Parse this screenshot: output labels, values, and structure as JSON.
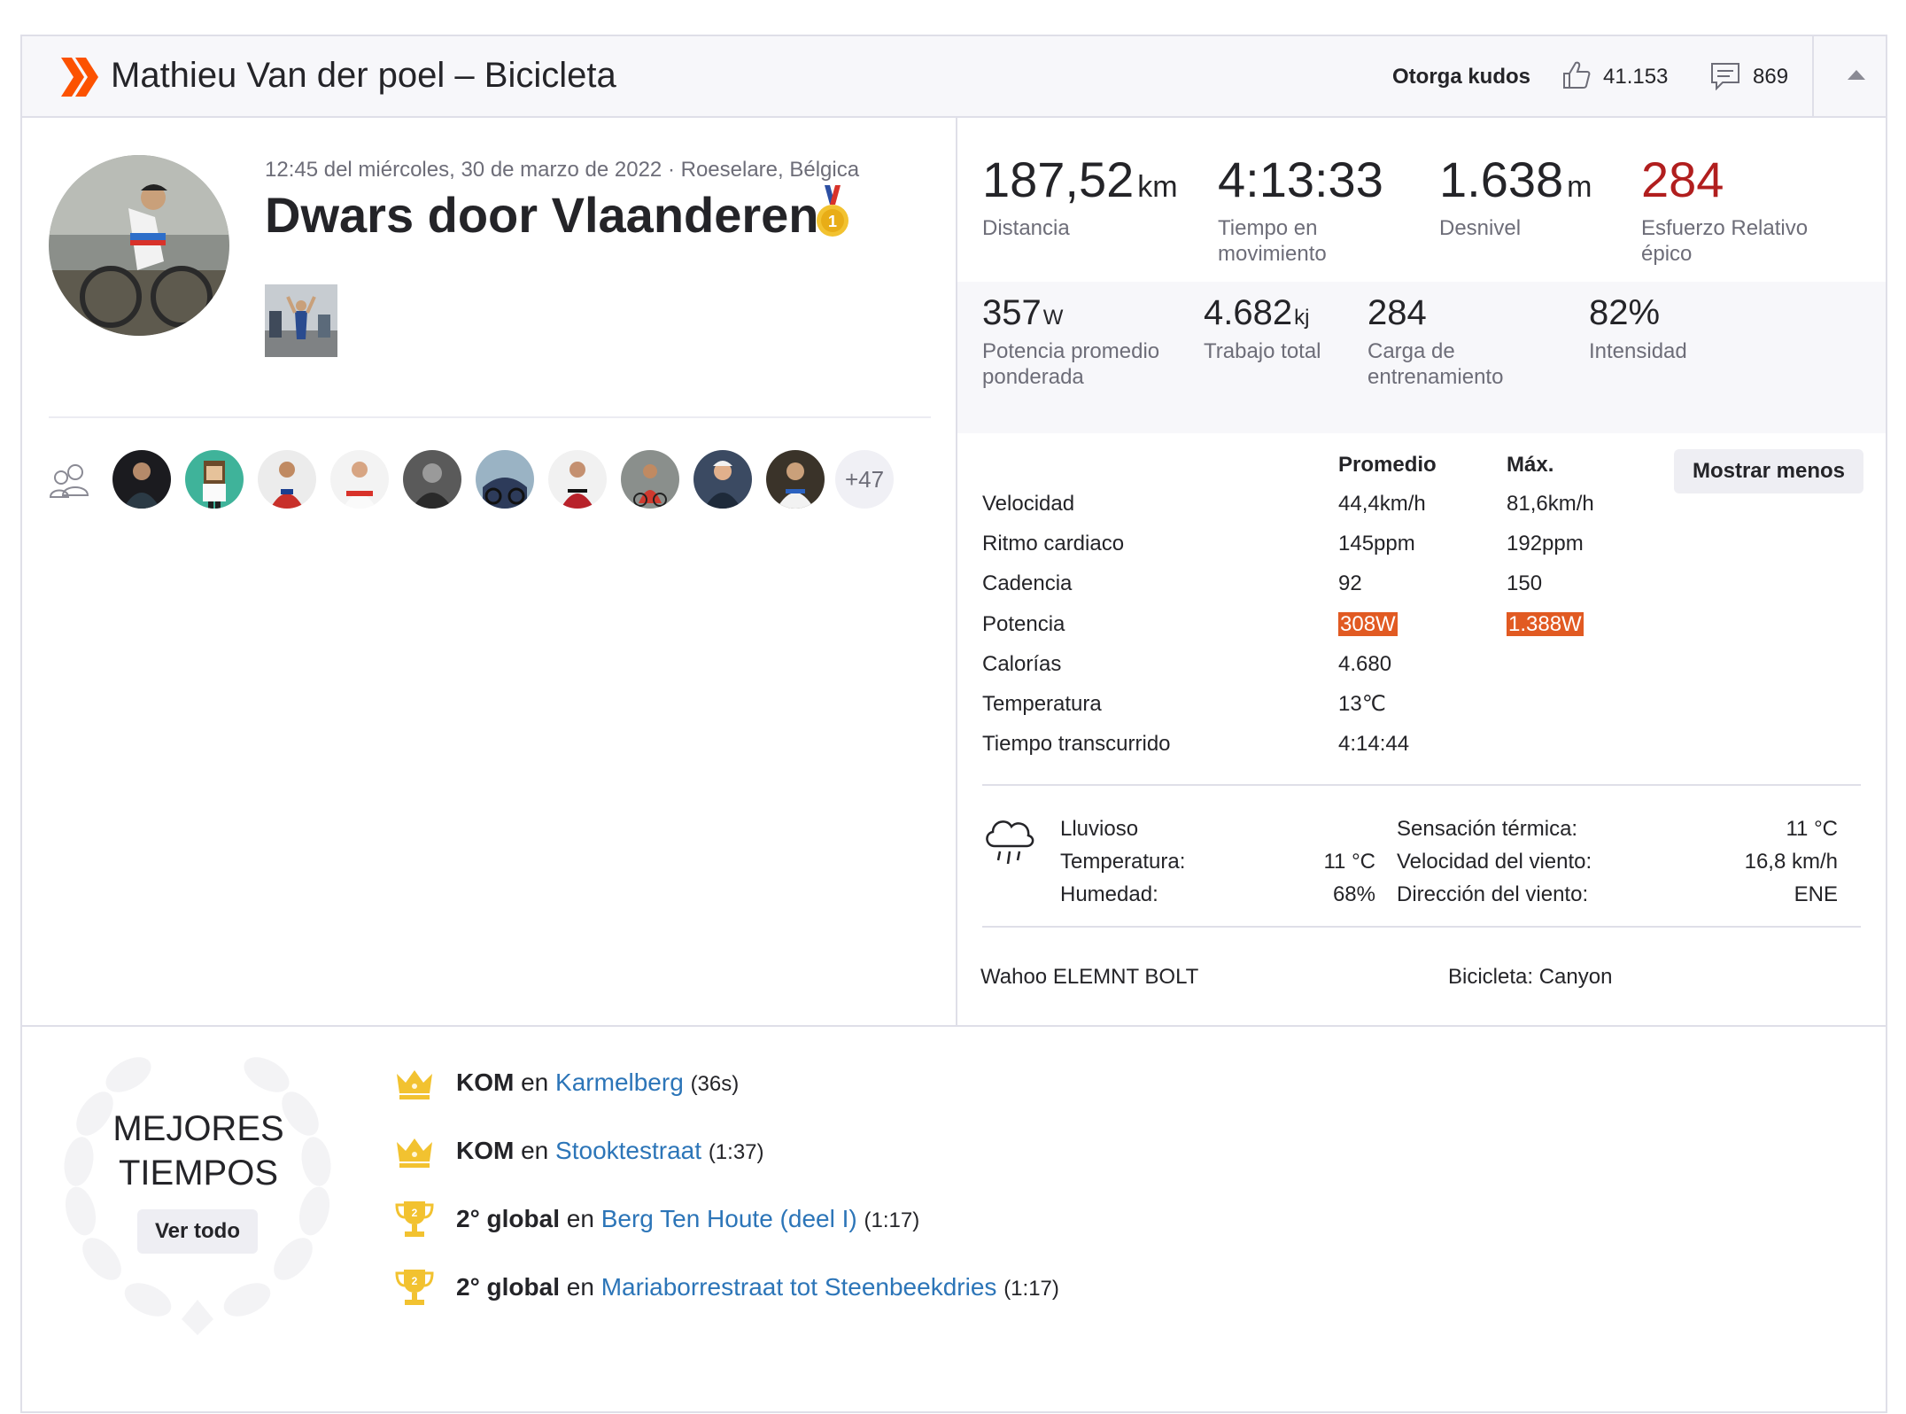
{
  "header": {
    "title": "Mathieu Van der poel – Bicicleta",
    "kudos_label": "Otorga kudos",
    "kudos_count": "41.153",
    "comments_count": "869"
  },
  "activity": {
    "meta": "12:45 del miércoles, 30 de marzo de 2022 · Roeselare, Bélgica",
    "title": "Dwars door Vlaanderen",
    "more_athletes": "+47"
  },
  "primary_stats": [
    {
      "value": "187,52",
      "unit": "km",
      "label": "Distancia"
    },
    {
      "value": "4:13:33",
      "unit": "",
      "label": "Tiempo en movimiento"
    },
    {
      "value": "1.638",
      "unit": "m",
      "label": "Desnivel"
    },
    {
      "value": "284",
      "unit": "",
      "label": "Esfuerzo Relativo épico"
    }
  ],
  "secondary_stats": [
    {
      "value": "357",
      "unit": "W",
      "label": "Potencia promedio ponderada"
    },
    {
      "value": "4.682",
      "unit": "kj",
      "label": "Trabajo total"
    },
    {
      "value": "284",
      "unit": "",
      "label": "Carga de entrenamiento"
    },
    {
      "value": "82%",
      "unit": "",
      "label": "Intensidad"
    }
  ],
  "table": {
    "avg_header": "Promedio",
    "max_header": "Máx.",
    "toggle_label": "Mostrar menos",
    "rows": [
      {
        "label": "Velocidad",
        "avg": "44,4km/h",
        "max": "81,6km/h"
      },
      {
        "label": "Ritmo cardiaco",
        "avg": "145ppm",
        "max": "192ppm"
      },
      {
        "label": "Cadencia",
        "avg": "92",
        "max": "150"
      },
      {
        "label": "Potencia",
        "avg": "308W",
        "max": "1.388W"
      },
      {
        "label": "Calorías",
        "avg": "4.680",
        "max": ""
      },
      {
        "label": "Temperatura",
        "avg": "13℃",
        "max": ""
      },
      {
        "label": "Tiempo transcurrido",
        "avg": "4:14:44",
        "max": ""
      }
    ]
  },
  "weather": {
    "condition": "Lluvioso",
    "temp_label": "Temperatura:",
    "temp_value": "11 °C",
    "humidity_label": "Humedad:",
    "humidity_value": "68%",
    "feels_label": "Sensación térmica:",
    "feels_value": "11 °C",
    "wind_speed_label": "Velocidad del viento:",
    "wind_speed_value": "16,8 km/h",
    "wind_dir_label": "Dirección del viento:",
    "wind_dir_value": "ENE"
  },
  "device": {
    "device": "Wahoo ELEMNT BOLT",
    "bike": "Bicicleta: Canyon"
  },
  "achievements": {
    "title_line1": "MEJORES",
    "title_line2": "TIEMPOS",
    "view_all": "Ver todo",
    "items": [
      {
        "icon": "crown-icon",
        "rank": "KOM",
        "connector": "en",
        "segment": "Karmelberg",
        "time": "(36s)"
      },
      {
        "icon": "crown-icon",
        "rank": "KOM",
        "connector": "en",
        "segment": "Stooktestraat",
        "time": "(1:37)"
      },
      {
        "icon": "trophy-icon",
        "rank": "2° global",
        "connector": "en",
        "segment": "Berg Ten Houte (deel I)",
        "time": "(1:17)"
      },
      {
        "icon": "trophy-icon",
        "rank": "2° global",
        "connector": "en",
        "segment": "Mariaborrestraat tot Steenbeekdries",
        "time": "(1:17)"
      }
    ]
  },
  "colors": {
    "brand": "#fc5200",
    "relative_effort": "#b11e1e",
    "highlight": "#e15a22",
    "link": "#2c75b8",
    "gold": "#f2c230"
  }
}
